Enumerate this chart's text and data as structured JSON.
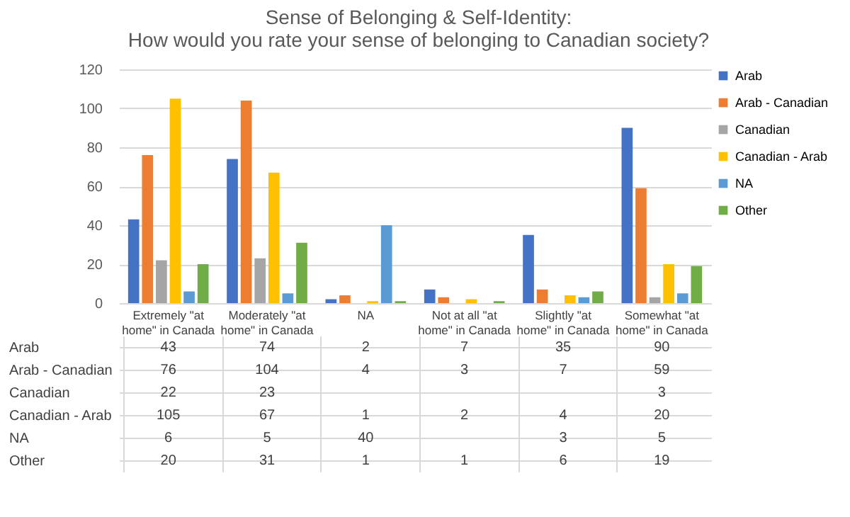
{
  "chart_data": {
    "type": "bar",
    "title": "Sense of Belonging & Self-Identity:\nHow would you rate your sense of belonging to Canadian society?",
    "categories": [
      "Extremely \"at home\" in Canada",
      "Moderately \"at home\" in Canada",
      "NA",
      "Not at all \"at home\" in Canada",
      "Slightly \"at home\" in Canada",
      "Somewhat \"at home\" in Canada"
    ],
    "series": [
      {
        "name": "Arab",
        "color": "#4472c4",
        "values": [
          43,
          74,
          2,
          7,
          35,
          90
        ]
      },
      {
        "name": "Arab - Canadian",
        "color": "#ed7d31",
        "values": [
          76,
          104,
          4,
          3,
          7,
          59
        ]
      },
      {
        "name": "Canadian",
        "color": "#a5a5a5",
        "values": [
          22,
          23,
          null,
          null,
          null,
          3
        ]
      },
      {
        "name": "Canadian - Arab",
        "color": "#ffc000",
        "values": [
          105,
          67,
          1,
          2,
          4,
          20
        ]
      },
      {
        "name": "NA",
        "color": "#5b9bd5",
        "values": [
          6,
          5,
          40,
          null,
          3,
          5
        ]
      },
      {
        "name": "Other",
        "color": "#70ad47",
        "values": [
          20,
          31,
          1,
          1,
          6,
          19
        ]
      }
    ],
    "ylim": [
      0,
      120
    ],
    "yticks": [
      0,
      20,
      40,
      60,
      80,
      100,
      120
    ],
    "grid": "y",
    "legend": "right",
    "data_labels": true
  }
}
